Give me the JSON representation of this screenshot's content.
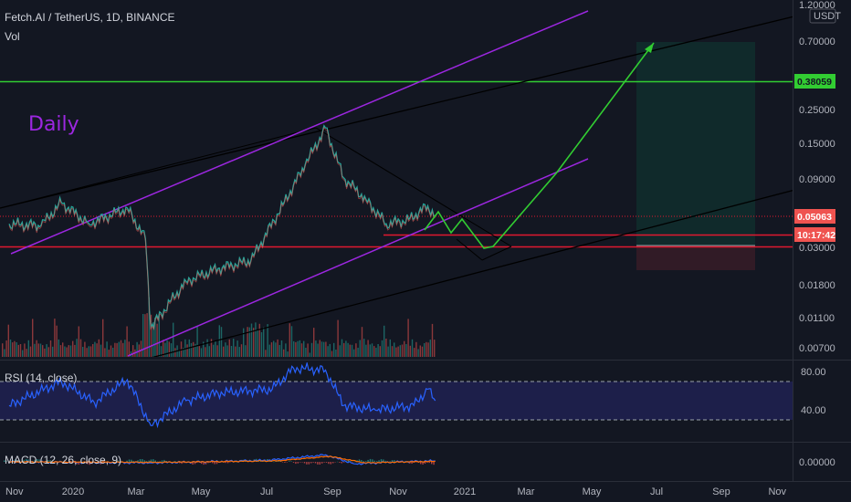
{
  "header": {
    "symbol_line": "Fetch.AI / TetherUS, 1D, BINANCE",
    "volume_label": "Vol",
    "annotation": "Daily",
    "currency": "USDT"
  },
  "colors": {
    "background": "#131722",
    "up": "#26a69a",
    "down": "#ef5350",
    "channel": "#9c27e0",
    "trendline": "#000000",
    "projection": "#32cd32",
    "support": "#e0182f",
    "resistance": "#32cd32",
    "rsi_line": "#2962ff",
    "rsi_band": "#1d1f4a",
    "macd_line": "#2962ff",
    "signal_line": "#ff6d00"
  },
  "chart_data": [
    {
      "type": "line",
      "title": "Fetch.AI / TetherUS, 1D, BINANCE",
      "scale": "log",
      "y_ticks": [
        "1.20000",
        "0.70000",
        "0.25000",
        "0.15000",
        "0.09000",
        "0.03000",
        "0.01800",
        "0.01100",
        "0.00700"
      ],
      "x_ticks": [
        "Nov",
        "2020",
        "Mar",
        "May",
        "Jul",
        "Sep",
        "Nov",
        "2021",
        "Mar",
        "May",
        "Jul",
        "Sep",
        "Nov"
      ],
      "price_points": [
        [
          "2019-11-01",
          0.045
        ],
        [
          "2019-12-01",
          0.044
        ],
        [
          "2019-12-20",
          0.062
        ],
        [
          "2020-01-15",
          0.045
        ],
        [
          "2020-02-20",
          0.057
        ],
        [
          "2020-03-08",
          0.036
        ],
        [
          "2020-03-13",
          0.0095
        ],
        [
          "2020-04-15",
          0.019
        ],
        [
          "2020-05-15",
          0.023
        ],
        [
          "2020-06-15",
          0.026
        ],
        [
          "2020-07-15",
          0.06
        ],
        [
          "2020-08-05",
          0.11
        ],
        [
          "2020-08-24",
          0.19
        ],
        [
          "2020-09-10",
          0.09
        ],
        [
          "2020-10-01",
          0.065
        ],
        [
          "2020-10-20",
          0.045
        ],
        [
          "2020-11-10",
          0.048
        ],
        [
          "2020-11-28",
          0.059
        ],
        [
          "2020-12-05",
          0.05063
        ]
      ],
      "last_price": "0.05063",
      "countdown": "10:17:42",
      "resistance_level": "0.38059",
      "target": "0.70000",
      "support": 0.033,
      "level_line": 0.038
    },
    {
      "type": "line",
      "title": "RSI (14, close)",
      "y_ticks": [
        "80.00",
        "40.00"
      ],
      "overbought": 70,
      "oversold": 30,
      "points": [
        [
          "2019-11-01",
          45
        ],
        [
          "2019-12-20",
          70
        ],
        [
          "2020-01-20",
          48
        ],
        [
          "2020-02-20",
          72
        ],
        [
          "2020-03-13",
          24
        ],
        [
          "2020-04-15",
          50
        ],
        [
          "2020-05-15",
          58
        ],
        [
          "2020-07-05",
          62
        ],
        [
          "2020-07-25",
          84
        ],
        [
          "2020-08-24",
          82
        ],
        [
          "2020-09-10",
          45
        ],
        [
          "2020-10-10",
          40
        ],
        [
          "2020-11-15",
          45
        ],
        [
          "2020-11-28",
          62
        ],
        [
          "2020-12-05",
          50
        ]
      ]
    },
    {
      "type": "line",
      "title": "MACD (12, 26, close, 9)",
      "y_ticks": [
        "0.00000"
      ],
      "macd": [
        [
          "2019-11-01",
          0.0
        ],
        [
          "2020-03-13",
          -0.002
        ],
        [
          "2020-07-01",
          0.003
        ],
        [
          "2020-08-24",
          0.014
        ],
        [
          "2020-09-20",
          -0.004
        ],
        [
          "2020-11-01",
          0.0
        ],
        [
          "2020-12-05",
          0.002
        ]
      ],
      "signal": [
        [
          "2019-11-01",
          0.0
        ],
        [
          "2020-03-20",
          -0.001
        ],
        [
          "2020-07-10",
          0.002
        ],
        [
          "2020-08-28",
          0.011
        ],
        [
          "2020-09-30",
          -0.002
        ],
        [
          "2020-11-10",
          0.0
        ],
        [
          "2020-12-05",
          0.001
        ]
      ]
    }
  ]
}
